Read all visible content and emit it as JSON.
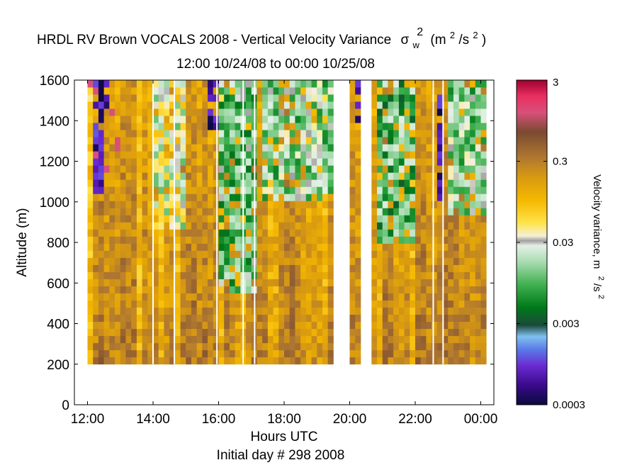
{
  "chart_data": {
    "type": "heatmap",
    "title": {
      "main": "HRDL RV Brown VOCALS 2008 - Vertical Velocity Variance",
      "symbol": "σ",
      "symbol_sup": "2",
      "symbol_sub": "w",
      "units_open": "(m",
      "units_sup1": "2",
      "units_mid": "/s",
      "units_sup2": "2",
      "units_close": ")",
      "subtitle": "12:00 10/24/08 to 00:00 10/25/08"
    },
    "xlabel": "Hours UTC",
    "xlabel2": "Initial day # 298  2008",
    "ylabel": "Altitude (m)",
    "xlim_hours": [
      11.6,
      24.4
    ],
    "ylim": [
      0,
      1600
    ],
    "x_ticks": [
      {
        "value": 12,
        "label": "12:00"
      },
      {
        "value": 14,
        "label": "14:00"
      },
      {
        "value": 16,
        "label": "16:00"
      },
      {
        "value": 18,
        "label": "18:00"
      },
      {
        "value": 20,
        "label": "20:00"
      },
      {
        "value": 22,
        "label": "22:00"
      },
      {
        "value": 24,
        "label": "00:00"
      }
    ],
    "y_ticks": [
      {
        "value": 0,
        "label": "0"
      },
      {
        "value": 200,
        "label": "200"
      },
      {
        "value": 400,
        "label": "400"
      },
      {
        "value": 600,
        "label": "600"
      },
      {
        "value": 800,
        "label": "800"
      },
      {
        "value": 1000,
        "label": "1000"
      },
      {
        "value": 1200,
        "label": "1200"
      },
      {
        "value": 1400,
        "label": "1400"
      },
      {
        "value": 1600,
        "label": "1600"
      }
    ],
    "colorbar": {
      "label": "Velocity variance, m",
      "label_sup1": "2",
      "label_mid": "/s",
      "label_sup2": "2",
      "scale": "log",
      "range": [
        0.0003,
        3
      ],
      "ticks": [
        {
          "value": 3,
          "label": "3"
        },
        {
          "value": 0.3,
          "label": "0.3"
        },
        {
          "value": 0.03,
          "label": "0.03"
        },
        {
          "value": 0.003,
          "label": "0.003"
        },
        {
          "value": 0.0003,
          "label": "0.0003"
        }
      ],
      "stops": [
        {
          "at": 0.0,
          "color": "#0a0a3c"
        },
        {
          "at": 0.06,
          "color": "#3a0a8c"
        },
        {
          "at": 0.12,
          "color": "#6a2ad0"
        },
        {
          "at": 0.17,
          "color": "#5a7ae8"
        },
        {
          "at": 0.21,
          "color": "#80c0f0"
        },
        {
          "at": 0.245,
          "color": "#1a4a3a"
        },
        {
          "at": 0.3,
          "color": "#007a1a"
        },
        {
          "at": 0.37,
          "color": "#40b050"
        },
        {
          "at": 0.44,
          "color": "#a8dcb0"
        },
        {
          "at": 0.49,
          "color": "#e4f0e6"
        },
        {
          "at": 0.505,
          "color": "#a0a0a0"
        },
        {
          "at": 0.52,
          "color": "#f4f0d8"
        },
        {
          "at": 0.56,
          "color": "#ffe34a"
        },
        {
          "at": 0.63,
          "color": "#f5b800"
        },
        {
          "at": 0.7,
          "color": "#d89a10"
        },
        {
          "at": 0.76,
          "color": "#b07830"
        },
        {
          "at": 0.84,
          "color": "#7a4a30"
        },
        {
          "at": 0.9,
          "color": "#d8507a"
        },
        {
          "at": 0.95,
          "color": "#e83060"
        },
        {
          "at": 1.0,
          "color": "#a00030"
        }
      ]
    },
    "altitude_range_m": [
      200,
      1600
    ],
    "altitude_bin_m": 35,
    "time_bin_minutes": 10,
    "missing_intervals_hours": [
      [
        19.5,
        20.05
      ],
      [
        20.35,
        20.65
      ]
    ],
    "missing_color": "#ffffff",
    "low_variance_regions": [
      {
        "t0": 16.0,
        "t1": 17.1,
        "z0": 550,
        "z1": 1600,
        "level": 0.012
      },
      {
        "t0": 17.2,
        "t1": 19.5,
        "z0": 1000,
        "z1": 1600,
        "level": 0.015
      },
      {
        "t0": 20.7,
        "t1": 21.9,
        "z0": 800,
        "z1": 1600,
        "level": 0.01
      },
      {
        "t0": 23.0,
        "t1": 24.1,
        "z0": 950,
        "z1": 1600,
        "level": 0.015
      },
      {
        "t0": 14.0,
        "t1": 15.0,
        "z0": 850,
        "z1": 1600,
        "level": 0.03
      }
    ],
    "high_variance_columns": [
      {
        "t0": 12.15,
        "t1": 12.35,
        "z0": 1050,
        "z1": 1600,
        "level": 0.0004
      },
      {
        "t0": 12.35,
        "t1": 12.55,
        "z0": 1450,
        "z1": 1600,
        "level": 0.0004
      },
      {
        "t0": 15.65,
        "t1": 15.85,
        "z0": 1350,
        "z1": 1600,
        "level": 0.0004
      },
      {
        "t0": 20.05,
        "t1": 20.35,
        "z0": 1400,
        "z1": 1600,
        "level": 0.0004
      },
      {
        "t0": 22.55,
        "t1": 22.8,
        "z0": 1000,
        "z1": 1600,
        "level": 0.0004
      }
    ],
    "vertical_gap_lines_hours": [
      14.0,
      14.65,
      15.95,
      16.75,
      17.1,
      22.55,
      22.85
    ]
  }
}
